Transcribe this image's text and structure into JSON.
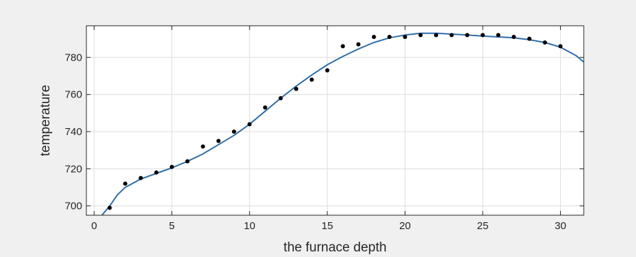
{
  "chart_data": {
    "type": "scatter",
    "title": "",
    "xlabel": "the furnace depth",
    "ylabel": "temperature",
    "xlim": [
      -0.5,
      31.5
    ],
    "ylim": [
      695,
      797
    ],
    "xticks": [
      0,
      5,
      10,
      15,
      20,
      25,
      30
    ],
    "yticks": [
      700,
      720,
      740,
      760,
      780
    ],
    "grid": true,
    "series": [
      {
        "kind": "scatter",
        "color": "#000000",
        "x": [
          1,
          2,
          3,
          4,
          5,
          6,
          7,
          8,
          9,
          10,
          11,
          12,
          13,
          14,
          15,
          16,
          17,
          18,
          19,
          20,
          21,
          22,
          23,
          24,
          25,
          26,
          27,
          28,
          29,
          30
        ],
        "y": [
          699,
          712,
          715,
          718,
          721,
          724,
          732,
          735,
          740,
          744,
          753,
          758,
          763,
          768,
          773,
          786,
          787,
          791,
          791,
          791,
          792,
          792,
          792,
          792,
          792,
          792,
          791,
          790,
          788,
          786
        ]
      },
      {
        "kind": "line",
        "color": "#2f6eaa",
        "x": [
          0.5,
          1,
          1.5,
          2,
          3,
          4,
          5,
          6,
          7,
          8,
          9,
          10,
          11,
          12,
          13,
          14,
          15,
          16,
          17,
          18,
          19,
          20,
          21,
          22,
          23,
          24,
          25,
          26,
          27,
          28,
          29,
          30,
          31,
          31.5
        ],
        "y": [
          695,
          700,
          706,
          710,
          714.5,
          717.5,
          720.5,
          724,
          728,
          733,
          738,
          744,
          751,
          758,
          764.5,
          770.5,
          776,
          780.5,
          784.5,
          788,
          790.5,
          792,
          793,
          793,
          792.5,
          792,
          791.5,
          791,
          790.5,
          789.5,
          788,
          785.5,
          781,
          777.5
        ]
      }
    ]
  }
}
